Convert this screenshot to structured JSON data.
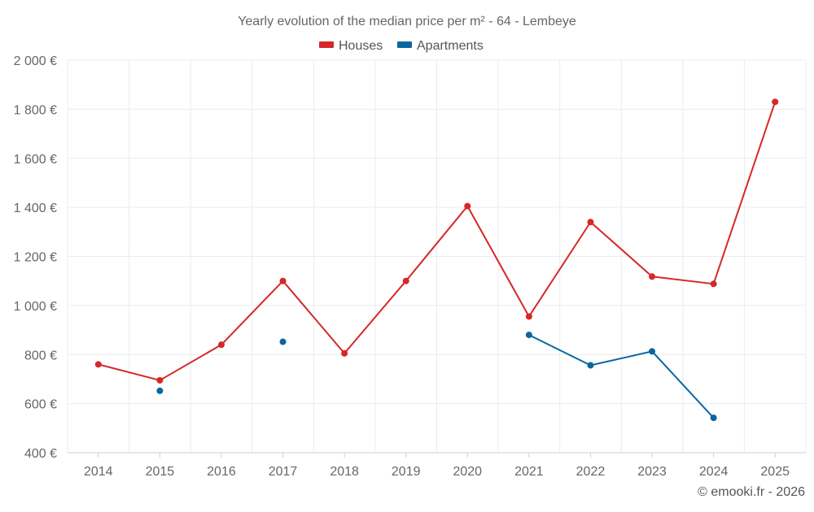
{
  "chart_data": {
    "type": "line",
    "title": "Yearly evolution of the median price per m² - 64 - Lembeye",
    "categories": [
      "2014",
      "2015",
      "2016",
      "2017",
      "2018",
      "2019",
      "2020",
      "2021",
      "2022",
      "2023",
      "2024",
      "2025"
    ],
    "series": [
      {
        "name": "Houses",
        "color": "#d62728",
        "values": [
          760,
          695,
          840,
          1100,
          805,
          1100,
          1405,
          955,
          1340,
          1118,
          1088,
          1830
        ]
      },
      {
        "name": "Apartments",
        "color": "#0a66a0",
        "values": [
          null,
          652,
          null,
          852,
          null,
          null,
          null,
          880,
          756,
          813,
          542,
          null
        ]
      }
    ],
    "y_ticks": [
      400,
      600,
      800,
      1000,
      1200,
      1400,
      1600,
      1800,
      2000
    ],
    "y_tick_labels": [
      "400 €",
      "600 €",
      "800 €",
      "1 000 €",
      "1 200 €",
      "1 400 €",
      "1 600 €",
      "1 800 €",
      "2 000 €"
    ],
    "ylim": [
      400,
      2000
    ],
    "xlabel": "",
    "ylabel": "",
    "grid": true,
    "legend_position": "top-center"
  },
  "credit": "© emooki.fr - 2026"
}
